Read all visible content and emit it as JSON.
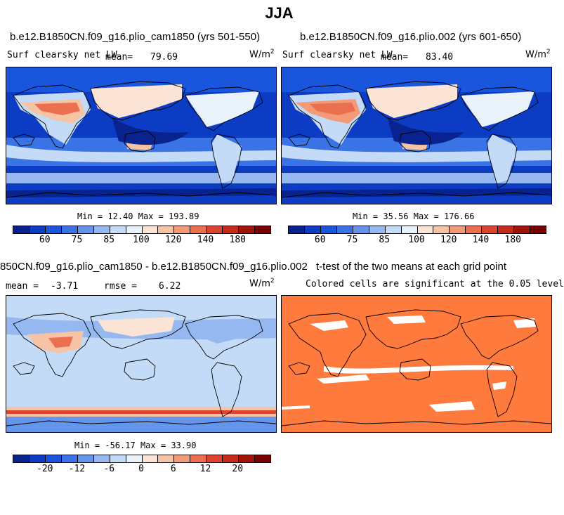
{
  "title": "JJA",
  "colors": {
    "scale": [
      "#08238f",
      "#0b3cc3",
      "#1a55dd",
      "#3a73e6",
      "#6495ea",
      "#96b8f0",
      "#c4dbf7",
      "#e9f2fb",
      "#fbe4d6",
      "#f7c3a5",
      "#f29b76",
      "#eb7050",
      "#dc4430",
      "#c62a18",
      "#a01407",
      "#780000"
    ],
    "significant": "#ff7a3d",
    "coast": "#000000"
  },
  "panels": [
    {
      "id": "a",
      "title": "b.e12.B1850CN.f09_g16.plio_cam1850 (yrs 501-550)",
      "variable": "Surf clearsky net LW",
      "mean_label": "mean=",
      "mean": "79.69",
      "units": "W/m",
      "units_exp": "2",
      "min_label": "Min =",
      "min": "12.40",
      "max_label": "Max =",
      "max": "193.89",
      "ticks": [
        "60",
        "75",
        "85",
        "100",
        "120",
        "140",
        "180"
      ]
    },
    {
      "id": "b",
      "title": "b.e12.B1850CN.f09_g16.plio.002 (yrs 601-650)",
      "variable": "Surf clearsky net LW",
      "mean_label": "mean=",
      "mean": "83.40",
      "units": "W/m",
      "units_exp": "2",
      "min_label": "Min =",
      "min": "35.56",
      "max_label": "Max =",
      "max": "176.66",
      "ticks": [
        "60",
        "75",
        "85",
        "100",
        "120",
        "140",
        "180"
      ]
    },
    {
      "id": "c",
      "title": "850CN.f09_g16.plio_cam1850 - b.e12.B1850CN.f09_g16.plio.002",
      "mean_label": "mean =",
      "mean": "-3.71",
      "rmse_label": "rmse =",
      "rmse": "6.22",
      "units": "W/m",
      "units_exp": "2",
      "min_label": "Min =",
      "min": "-56.17",
      "max_label": "Max =",
      "max": "33.90",
      "ticks": [
        "-20",
        "-12",
        "-6",
        "0",
        "6",
        "12",
        "20"
      ]
    },
    {
      "id": "d",
      "title": "t-test of the two means at each grid point",
      "subtitle": "Colored cells are significant at the 0.05 level"
    }
  ]
}
